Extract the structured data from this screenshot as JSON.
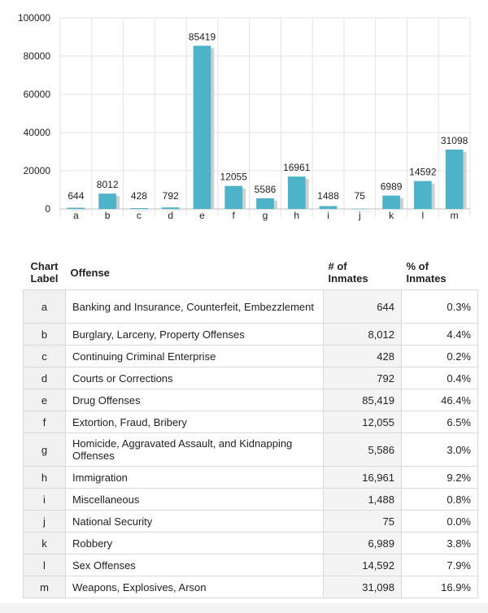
{
  "chart_data": {
    "type": "bar",
    "categories": [
      "a",
      "b",
      "c",
      "d",
      "e",
      "f",
      "g",
      "h",
      "i",
      "j",
      "k",
      "l",
      "m"
    ],
    "values": [
      644,
      8012,
      428,
      792,
      85419,
      12055,
      5586,
      16961,
      1488,
      75,
      6989,
      14592,
      31098
    ],
    "data_labels": [
      "644",
      "8012",
      "428",
      "792",
      "85419",
      "12055",
      "5586",
      "16961",
      "1488",
      "75",
      "6989",
      "14592",
      "31098"
    ],
    "y_ticks": [
      "0",
      "20000",
      "40000",
      "60000",
      "80000",
      "100000"
    ],
    "ylim": [
      0,
      100000
    ],
    "grid": true,
    "bar_color": "#4db3c8",
    "shadow_color": "#cfcfcf"
  },
  "table": {
    "headers": {
      "label_line1": "Chart",
      "label_line2": "Label",
      "offense": "Offense",
      "num_line1": "# of",
      "num_line2": "Inmates",
      "pct_line1": "% of",
      "pct_line2": "Inmates"
    },
    "rows": [
      {
        "label": "a",
        "offense": "Banking and Insurance, Counterfeit, Embezzlement",
        "count": "644",
        "pct": "0.3%"
      },
      {
        "label": "b",
        "offense": "Burglary, Larceny, Property Offenses",
        "count": "8,012",
        "pct": "4.4%"
      },
      {
        "label": "c",
        "offense": "Continuing Criminal Enterprise",
        "count": "428",
        "pct": "0.2%"
      },
      {
        "label": "d",
        "offense": "Courts or Corrections",
        "count": "792",
        "pct": "0.4%"
      },
      {
        "label": "e",
        "offense": "Drug Offenses",
        "count": "85,419",
        "pct": "46.4%"
      },
      {
        "label": "f",
        "offense": "Extortion, Fraud, Bribery",
        "count": "12,055",
        "pct": "6.5%"
      },
      {
        "label": "g",
        "offense": "Homicide, Aggravated Assault, and Kidnapping Offenses",
        "count": "5,586",
        "pct": "3.0%"
      },
      {
        "label": "h",
        "offense": "Immigration",
        "count": "16,961",
        "pct": "9.2%"
      },
      {
        "label": "i",
        "offense": "Miscellaneous",
        "count": "1,488",
        "pct": "0.8%"
      },
      {
        "label": "j",
        "offense": "National Security",
        "count": "75",
        "pct": "0.0%"
      },
      {
        "label": "k",
        "offense": "Robbery",
        "count": "6,989",
        "pct": "3.8%"
      },
      {
        "label": "l",
        "offense": "Sex Offenses",
        "count": "14,592",
        "pct": "7.9%"
      },
      {
        "label": "m",
        "offense": "Weapons, Explosives, Arson",
        "count": "31,098",
        "pct": "16.9%"
      }
    ]
  }
}
